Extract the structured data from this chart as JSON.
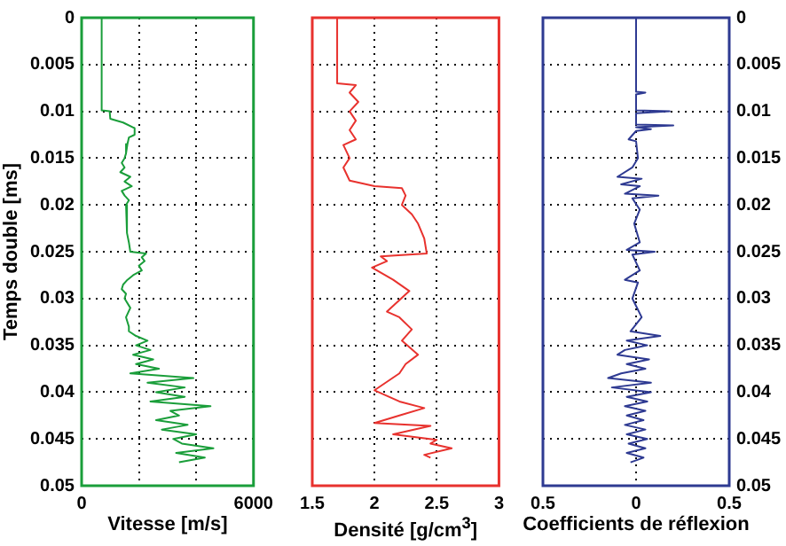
{
  "chart_data": [
    {
      "type": "line",
      "orientation": "horizontal",
      "xlabel": "Vitesse [m/s]",
      "ylabel": "Temps double [ms]",
      "color": "#1a9e3a",
      "marker": "none",
      "grid": true,
      "legend": false,
      "x": [
        0,
        0.0099,
        0.01,
        0.0108,
        0.0112,
        0.0118,
        0.0125,
        0.0128,
        0.0135,
        0.0145,
        0.015,
        0.0155,
        0.016,
        0.0165,
        0.017,
        0.0175,
        0.018,
        0.0185,
        0.019,
        0.0195,
        0.02,
        0.021,
        0.022,
        0.023,
        0.024,
        0.025,
        0.0252,
        0.0256,
        0.026,
        0.0265,
        0.027,
        0.0275,
        0.028,
        0.0285,
        0.029,
        0.0295,
        0.03,
        0.031,
        0.032,
        0.033,
        0.0335,
        0.034,
        0.0345,
        0.035,
        0.0355,
        0.036,
        0.0365,
        0.037,
        0.0375,
        0.038,
        0.0385,
        0.039,
        0.0395,
        0.04,
        0.0405,
        0.041,
        0.0415,
        0.042,
        0.0425,
        0.043,
        0.0435,
        0.044,
        0.0445,
        0.045,
        0.0455,
        0.046,
        0.0465,
        0.047,
        0.0475
      ],
      "values": [
        700,
        700,
        980,
        1000,
        1450,
        1850,
        1850,
        1650,
        1600,
        1550,
        1500,
        1400,
        1500,
        1350,
        1700,
        1500,
        1750,
        1400,
        1500,
        1650,
        1550,
        1600,
        1550,
        1600,
        1650,
        1700,
        2250,
        2100,
        2200,
        2000,
        2100,
        1800,
        1600,
        1450,
        1400,
        1550,
        1500,
        1700,
        1550,
        1650,
        1650,
        1900,
        2300,
        1900,
        2400,
        1800,
        2500,
        1900,
        2700,
        1700,
        3900,
        2300,
        3600,
        2600,
        3600,
        2400,
        4500,
        3100,
        3400,
        2600,
        3700,
        2800,
        4000,
        3200,
        3500,
        4600,
        3300,
        4300,
        3400
      ],
      "xlim": [
        0,
        6000
      ],
      "xticks": [
        0,
        {
          "value": 2000,
          "label": null
        },
        {
          "value": 4000,
          "label": null
        },
        6000
      ],
      "ylim": [
        0.05,
        0
      ],
      "yticks": [
        0,
        0.005,
        0.01,
        0.015,
        0.02,
        0.025,
        0.03,
        0.035,
        0.04,
        0.045,
        0.05
      ]
    },
    {
      "type": "line",
      "orientation": "horizontal",
      "xlabel": "Densité [g/cm$^{3}$]",
      "color": "#e8322e",
      "marker": "none",
      "grid": true,
      "legend": false,
      "tick_labels": "x",
      "x": [
        0,
        0.007,
        0.0072,
        0.008,
        0.009,
        0.01,
        0.011,
        0.012,
        0.013,
        0.0136,
        0.015,
        0.016,
        0.0174,
        0.018,
        0.0182,
        0.019,
        0.02,
        0.021,
        0.022,
        0.0236,
        0.0252,
        0.0255,
        0.026,
        0.0267,
        0.028,
        0.0292,
        0.0314,
        0.032,
        0.0333,
        0.0345,
        0.036,
        0.037,
        0.038,
        0.0398,
        0.041,
        0.0417,
        0.0425,
        0.0433,
        0.0436,
        0.0445,
        0.0451,
        0.0455,
        0.046,
        0.0467,
        0.047
      ],
      "values": [
        1.7,
        1.7,
        1.85,
        1.8,
        1.87,
        1.8,
        1.85,
        1.8,
        1.85,
        1.75,
        1.8,
        1.75,
        1.8,
        2.0,
        2.22,
        2.25,
        2.22,
        2.3,
        2.35,
        2.4,
        2.42,
        2.05,
        2.1,
        1.98,
        2.15,
        2.28,
        2.1,
        2.2,
        2.3,
        2.22,
        2.35,
        2.25,
        2.2,
        2.0,
        2.2,
        2.4,
        2.2,
        2.0,
        2.45,
        2.15,
        2.5,
        2.45,
        2.62,
        2.4,
        2.45
      ],
      "xlim": [
        1.5,
        3
      ],
      "xticks": [
        1.5,
        2,
        2.5,
        3
      ],
      "ylim": [
        0.05,
        0
      ],
      "yticks": [
        0,
        0.005,
        0.01,
        0.015,
        0.02,
        0.025,
        0.03,
        0.035,
        0.04,
        0.045,
        0.05
      ]
    },
    {
      "type": "line",
      "orientation": "horizontal",
      "xlabel": "Coefficients de réflexion",
      "color": "#2e3a92",
      "marker": "none",
      "grid": true,
      "legend": false,
      "x": [
        0,
        0.0079,
        0.008,
        0.0082,
        0.0099,
        0.01,
        0.0102,
        0.0114,
        0.0115,
        0.0117,
        0.0119,
        0.0121,
        0.013,
        0.0132,
        0.015,
        0.016,
        0.017,
        0.0172,
        0.0178,
        0.018,
        0.0188,
        0.019,
        0.0193,
        0.0205,
        0.022,
        0.024,
        0.0248,
        0.025,
        0.0253,
        0.027,
        0.028,
        0.0283,
        0.03,
        0.032,
        0.0335,
        0.034,
        0.0345,
        0.035,
        0.0355,
        0.036,
        0.0365,
        0.037,
        0.0375,
        0.038,
        0.0385,
        0.039,
        0.0395,
        0.04,
        0.0405,
        0.041,
        0.0415,
        0.042,
        0.0425,
        0.043,
        0.0435,
        0.044,
        0.0445,
        0.045,
        0.0455,
        0.046,
        0.0465,
        0.047,
        0.0475
      ],
      "values": [
        0,
        0,
        0.05,
        0,
        0,
        0.18,
        0,
        0,
        0.2,
        0,
        0.08,
        0,
        -0.04,
        0,
        0.01,
        -0.02,
        -0.1,
        0.03,
        -0.08,
        0.02,
        -0.06,
        0.12,
        -0.02,
        0.02,
        -0.01,
        0.02,
        -0.05,
        0.1,
        -0.02,
        0.02,
        -0.06,
        0.01,
        -0.02,
        0.03,
        -0.03,
        0.13,
        -0.05,
        0.06,
        -0.06,
        -0.1,
        0.07,
        -0.05,
        0.05,
        -0.08,
        -0.15,
        0.08,
        -0.13,
        0.08,
        -0.05,
        0.06,
        -0.06,
        0.05,
        -0.05,
        0.04,
        -0.06,
        0.05,
        -0.05,
        0.06,
        -0.04,
        0.05,
        -0.05,
        0.04,
        -0.03
      ],
      "xlim": [
        -0.5,
        0.5
      ],
      "xticks": [
        {
          "value": -0.5,
          "label": "0.5"
        },
        0,
        0.5
      ],
      "ylim": [
        0.05,
        0
      ],
      "yticks": [
        0,
        0.005,
        0.01,
        0.015,
        0.02,
        0.025,
        0.03,
        0.035,
        0.04,
        0.045,
        0.05
      ]
    }
  ]
}
